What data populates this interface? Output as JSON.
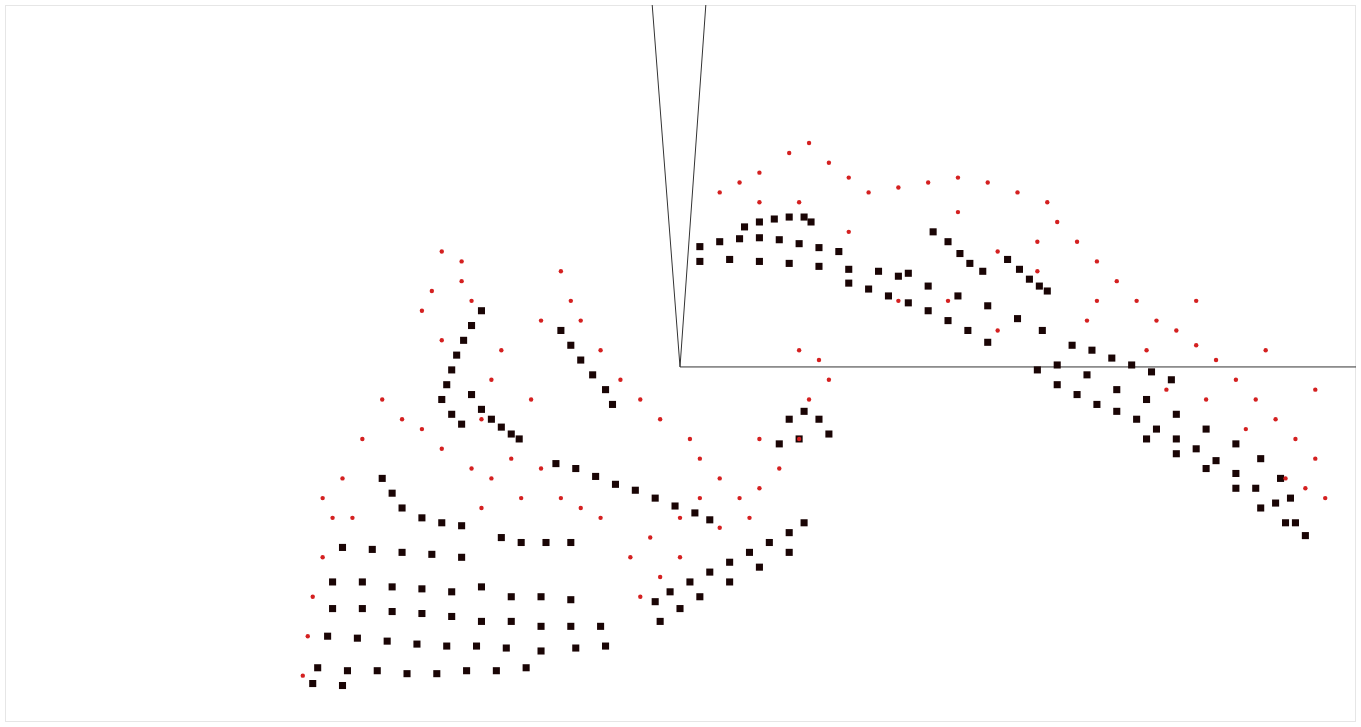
{
  "chart_data": {
    "type": "scatter",
    "tick_labels": false,
    "grid": false,
    "xlim": [
      0,
      1361
    ],
    "ylim": [
      727,
      0
    ],
    "series": [
      {
        "color": "#d42020",
        "marker": "dot",
        "points": [
          [
            720,
            190
          ],
          [
            740,
            180
          ],
          [
            760,
            170
          ],
          [
            790,
            150
          ],
          [
            810,
            140
          ],
          [
            830,
            160
          ],
          [
            850,
            175
          ],
          [
            870,
            190
          ],
          [
            900,
            185
          ],
          [
            930,
            180
          ],
          [
            960,
            175
          ],
          [
            990,
            180
          ],
          [
            1020,
            190
          ],
          [
            1050,
            200
          ],
          [
            1060,
            220
          ],
          [
            1080,
            240
          ],
          [
            1100,
            260
          ],
          [
            1120,
            280
          ],
          [
            1140,
            300
          ],
          [
            1160,
            320
          ],
          [
            1180,
            330
          ],
          [
            1200,
            345
          ],
          [
            1220,
            360
          ],
          [
            1240,
            380
          ],
          [
            1260,
            400
          ],
          [
            1280,
            420
          ],
          [
            1300,
            440
          ],
          [
            1320,
            460
          ],
          [
            1310,
            490
          ],
          [
            1290,
            480
          ],
          [
            1250,
            430
          ],
          [
            1210,
            400
          ],
          [
            1170,
            390
          ],
          [
            1000,
            330
          ],
          [
            950,
            300
          ],
          [
            900,
            300
          ],
          [
            850,
            230
          ],
          [
            800,
            200
          ],
          [
            760,
            200
          ],
          [
            1000,
            250
          ],
          [
            1040,
            270
          ],
          [
            1100,
            300
          ],
          [
            1150,
            350
          ],
          [
            1330,
            500
          ],
          [
            1320,
            390
          ],
          [
            1270,
            350
          ],
          [
            1200,
            300
          ],
          [
            1090,
            320
          ],
          [
            960,
            210
          ],
          [
            1040,
            240
          ],
          [
            440,
            250
          ],
          [
            460,
            260
          ],
          [
            430,
            290
          ],
          [
            460,
            280
          ],
          [
            470,
            300
          ],
          [
            420,
            310
          ],
          [
            440,
            340
          ],
          [
            560,
            270
          ],
          [
            570,
            300
          ],
          [
            580,
            320
          ],
          [
            600,
            350
          ],
          [
            620,
            380
          ],
          [
            640,
            400
          ],
          [
            660,
            420
          ],
          [
            690,
            440
          ],
          [
            700,
            460
          ],
          [
            720,
            480
          ],
          [
            740,
            500
          ],
          [
            760,
            490
          ],
          [
            780,
            470
          ],
          [
            800,
            440
          ],
          [
            810,
            400
          ],
          [
            820,
            360
          ],
          [
            800,
            350
          ],
          [
            830,
            380
          ],
          [
            760,
            440
          ],
          [
            700,
            500
          ],
          [
            680,
            520
          ],
          [
            650,
            540
          ],
          [
            630,
            560
          ],
          [
            600,
            520
          ],
          [
            580,
            510
          ],
          [
            560,
            500
          ],
          [
            540,
            470
          ],
          [
            510,
            460
          ],
          [
            490,
            480
          ],
          [
            470,
            470
          ],
          [
            440,
            450
          ],
          [
            420,
            430
          ],
          [
            400,
            420
          ],
          [
            380,
            400
          ],
          [
            360,
            440
          ],
          [
            340,
            480
          ],
          [
            330,
            520
          ],
          [
            320,
            560
          ],
          [
            310,
            600
          ],
          [
            305,
            640
          ],
          [
            300,
            680
          ],
          [
            350,
            520
          ],
          [
            320,
            500
          ],
          [
            480,
            510
          ],
          [
            520,
            500
          ],
          [
            680,
            560
          ],
          [
            720,
            530
          ],
          [
            640,
            600
          ],
          [
            660,
            580
          ],
          [
            750,
            520
          ],
          [
            500,
            350
          ],
          [
            490,
            380
          ],
          [
            480,
            420
          ],
          [
            540,
            320
          ],
          [
            530,
            400
          ]
        ]
      },
      {
        "color": "#1a0505",
        "marker": "square",
        "points": [
          [
            745,
            225
          ],
          [
            760,
            220
          ],
          [
            775,
            217
          ],
          [
            790,
            215
          ],
          [
            805,
            215
          ],
          [
            812,
            220
          ],
          [
            700,
            245
          ],
          [
            720,
            240
          ],
          [
            740,
            237
          ],
          [
            760,
            236
          ],
          [
            780,
            238
          ],
          [
            800,
            242
          ],
          [
            820,
            246
          ],
          [
            840,
            250
          ],
          [
            700,
            260
          ],
          [
            730,
            258
          ],
          [
            760,
            260
          ],
          [
            790,
            262
          ],
          [
            820,
            265
          ],
          [
            850,
            268
          ],
          [
            880,
            270
          ],
          [
            910,
            272
          ],
          [
            935,
            230
          ],
          [
            950,
            240
          ],
          [
            962,
            252
          ],
          [
            972,
            262
          ],
          [
            985,
            270
          ],
          [
            1010,
            258
          ],
          [
            1022,
            268
          ],
          [
            1032,
            278
          ],
          [
            1042,
            285
          ],
          [
            1050,
            290
          ],
          [
            850,
            282
          ],
          [
            870,
            288
          ],
          [
            890,
            295
          ],
          [
            910,
            302
          ],
          [
            930,
            310
          ],
          [
            950,
            320
          ],
          [
            970,
            330
          ],
          [
            990,
            342
          ],
          [
            900,
            275
          ],
          [
            930,
            285
          ],
          [
            960,
            295
          ],
          [
            990,
            305
          ],
          [
            1020,
            318
          ],
          [
            1045,
            330
          ],
          [
            1075,
            345
          ],
          [
            1095,
            350
          ],
          [
            1115,
            358
          ],
          [
            1135,
            365
          ],
          [
            1155,
            372
          ],
          [
            1175,
            380
          ],
          [
            1040,
            370
          ],
          [
            1060,
            385
          ],
          [
            1080,
            395
          ],
          [
            1100,
            405
          ],
          [
            1120,
            412
          ],
          [
            1140,
            420
          ],
          [
            1160,
            430
          ],
          [
            1180,
            440
          ],
          [
            1200,
            450
          ],
          [
            1220,
            462
          ],
          [
            1240,
            475
          ],
          [
            1260,
            490
          ],
          [
            1280,
            505
          ],
          [
            1300,
            525
          ],
          [
            1310,
            538
          ],
          [
            1060,
            365
          ],
          [
            1090,
            375
          ],
          [
            1120,
            390
          ],
          [
            1150,
            400
          ],
          [
            1180,
            415
          ],
          [
            1210,
            430
          ],
          [
            1240,
            445
          ],
          [
            1265,
            460
          ],
          [
            1285,
            480
          ],
          [
            1295,
            500
          ],
          [
            1150,
            440
          ],
          [
            1180,
            455
          ],
          [
            1210,
            470
          ],
          [
            1240,
            490
          ],
          [
            1265,
            510
          ],
          [
            1290,
            525
          ],
          [
            480,
            310
          ],
          [
            470,
            325
          ],
          [
            462,
            340
          ],
          [
            455,
            355
          ],
          [
            450,
            370
          ],
          [
            445,
            385
          ],
          [
            440,
            400
          ],
          [
            450,
            415
          ],
          [
            460,
            425
          ],
          [
            470,
            395
          ],
          [
            480,
            410
          ],
          [
            490,
            420
          ],
          [
            500,
            428
          ],
          [
            510,
            435
          ],
          [
            518,
            440
          ],
          [
            560,
            330
          ],
          [
            570,
            345
          ],
          [
            580,
            360
          ],
          [
            592,
            375
          ],
          [
            605,
            390
          ],
          [
            612,
            405
          ],
          [
            790,
            420
          ],
          [
            805,
            412
          ],
          [
            820,
            420
          ],
          [
            830,
            435
          ],
          [
            800,
            440
          ],
          [
            780,
            445
          ],
          [
            555,
            465
          ],
          [
            575,
            470
          ],
          [
            595,
            478
          ],
          [
            615,
            486
          ],
          [
            635,
            492
          ],
          [
            655,
            500
          ],
          [
            675,
            508
          ],
          [
            695,
            515
          ],
          [
            710,
            522
          ],
          [
            380,
            480
          ],
          [
            390,
            495
          ],
          [
            400,
            510
          ],
          [
            420,
            520
          ],
          [
            440,
            525
          ],
          [
            460,
            528
          ],
          [
            340,
            550
          ],
          [
            370,
            552
          ],
          [
            400,
            555
          ],
          [
            430,
            557
          ],
          [
            460,
            560
          ],
          [
            500,
            540
          ],
          [
            520,
            545
          ],
          [
            545,
            545
          ],
          [
            570,
            545
          ],
          [
            330,
            585
          ],
          [
            360,
            585
          ],
          [
            390,
            590
          ],
          [
            420,
            592
          ],
          [
            450,
            595
          ],
          [
            480,
            590
          ],
          [
            510,
            600
          ],
          [
            540,
            600
          ],
          [
            570,
            603
          ],
          [
            330,
            612
          ],
          [
            360,
            612
          ],
          [
            390,
            615
          ],
          [
            420,
            617
          ],
          [
            450,
            620
          ],
          [
            480,
            625
          ],
          [
            510,
            625
          ],
          [
            540,
            630
          ],
          [
            570,
            630
          ],
          [
            600,
            630
          ],
          [
            325,
            640
          ],
          [
            355,
            642
          ],
          [
            385,
            645
          ],
          [
            415,
            648
          ],
          [
            445,
            650
          ],
          [
            475,
            650
          ],
          [
            505,
            652
          ],
          [
            540,
            655
          ],
          [
            575,
            652
          ],
          [
            605,
            650
          ],
          [
            315,
            672
          ],
          [
            345,
            675
          ],
          [
            375,
            675
          ],
          [
            405,
            678
          ],
          [
            435,
            678
          ],
          [
            465,
            675
          ],
          [
            495,
            675
          ],
          [
            525,
            672
          ],
          [
            310,
            688
          ],
          [
            340,
            690
          ],
          [
            655,
            605
          ],
          [
            670,
            595
          ],
          [
            690,
            585
          ],
          [
            710,
            575
          ],
          [
            730,
            565
          ],
          [
            750,
            555
          ],
          [
            770,
            545
          ],
          [
            790,
            535
          ],
          [
            805,
            525
          ],
          [
            660,
            625
          ],
          [
            680,
            612
          ],
          [
            700,
            600
          ],
          [
            730,
            585
          ],
          [
            760,
            570
          ],
          [
            790,
            555
          ]
        ]
      }
    ]
  }
}
